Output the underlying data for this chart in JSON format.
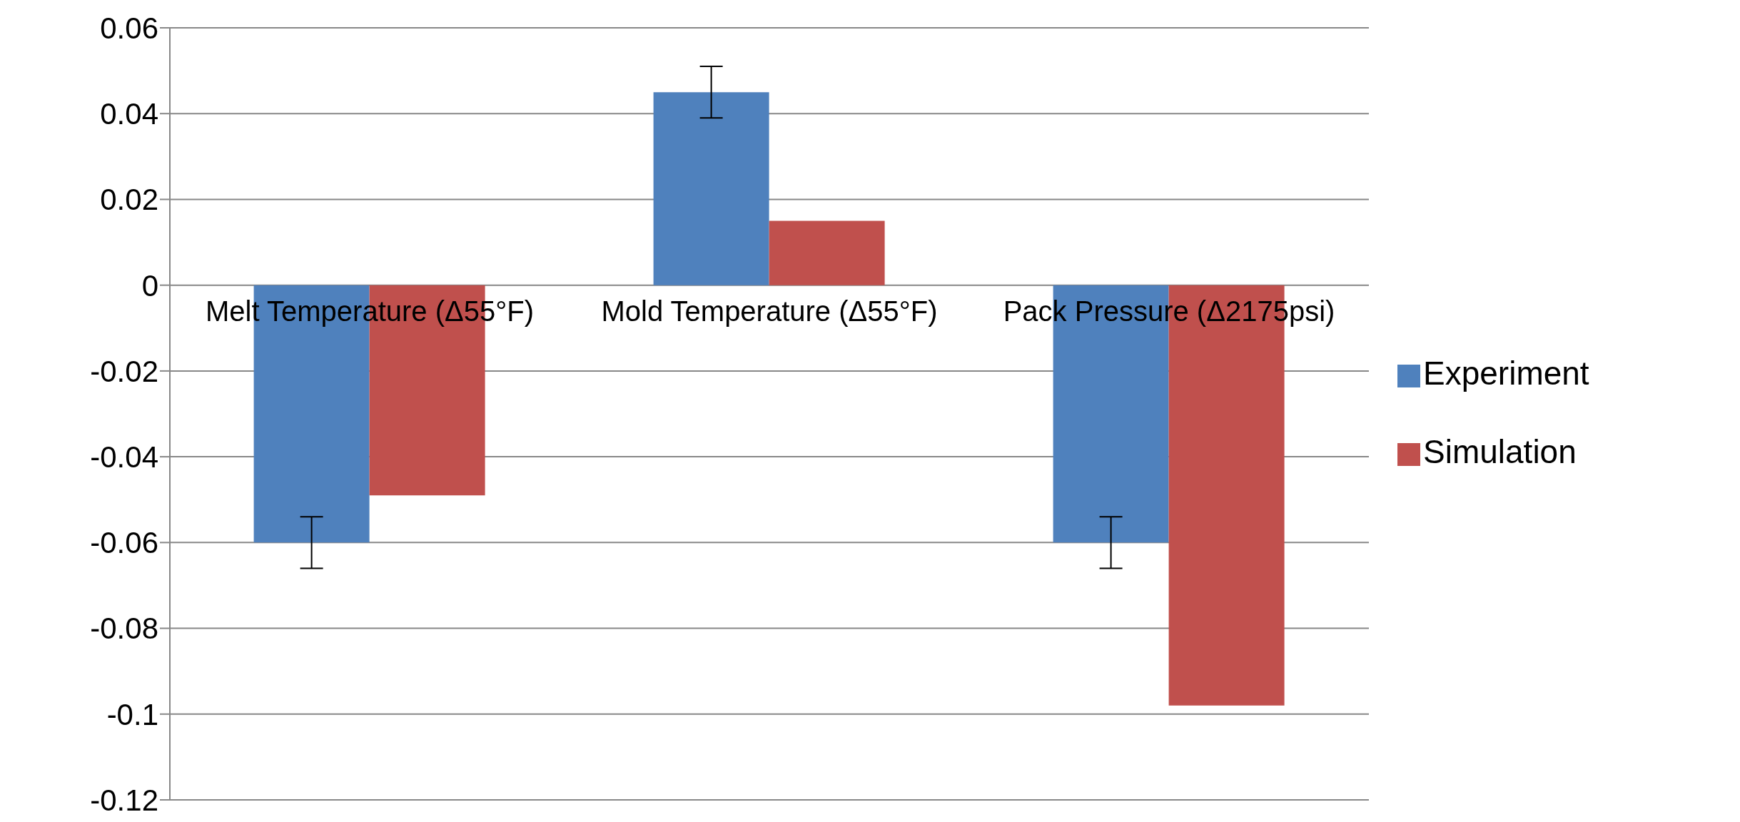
{
  "chart_data": {
    "type": "bar",
    "categories": [
      "Melt Temperature (Δ55°F)",
      "Mold Temperature (Δ55°F)",
      "Pack Pressure (Δ2175psi)"
    ],
    "series": [
      {
        "name": "Experiment",
        "color": "#4f81bd",
        "values": [
          -0.06,
          0.045,
          -0.06
        ],
        "errors": [
          0.006,
          0.006,
          0.006
        ]
      },
      {
        "name": "Simulation",
        "color": "#c0504d",
        "values": [
          -0.049,
          0.015,
          -0.098
        ]
      }
    ],
    "ylim": [
      -0.12,
      0.06
    ],
    "yticks": [
      -0.12,
      -0.1,
      -0.08,
      -0.06,
      -0.04,
      -0.02,
      0,
      0.02,
      0.04,
      0.06
    ],
    "grid": "y",
    "legend": "right"
  }
}
